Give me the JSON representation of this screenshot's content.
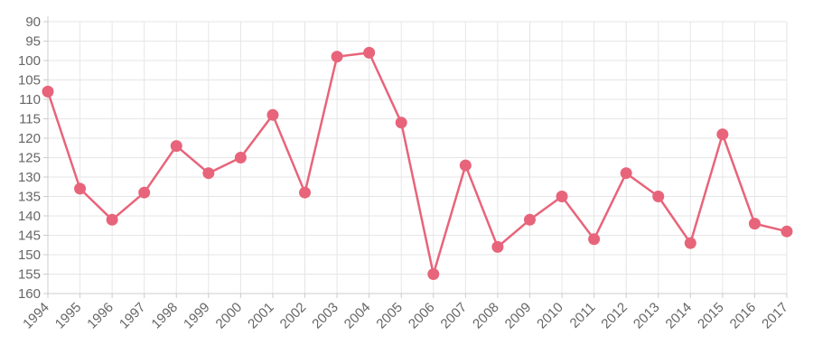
{
  "chart_data": {
    "type": "line",
    "x": [
      "1994",
      "1995",
      "1996",
      "1997",
      "1998",
      "1999",
      "2000",
      "2001",
      "2002",
      "2003",
      "2004",
      "2005",
      "2006",
      "2007",
      "2008",
      "2009",
      "2010",
      "2011",
      "2012",
      "2013",
      "2014",
      "2015",
      "2016",
      "2017"
    ],
    "series": [
      {
        "values": [
          108,
          133,
          141,
          134,
          122,
          129,
          125,
          114,
          134,
          99,
          98,
          116,
          155,
          127,
          148,
          141,
          135,
          146,
          129,
          135,
          147,
          119,
          142,
          144
        ],
        "color": "#e8647a"
      }
    ],
    "y_ticks": [
      "90",
      "95",
      "100",
      "105",
      "110",
      "115",
      "120",
      "125",
      "130",
      "135",
      "140",
      "145",
      "150",
      "155",
      "160"
    ],
    "ylim": [
      90,
      160
    ],
    "y_reversed": true,
    "grid": true,
    "legend": "none"
  }
}
